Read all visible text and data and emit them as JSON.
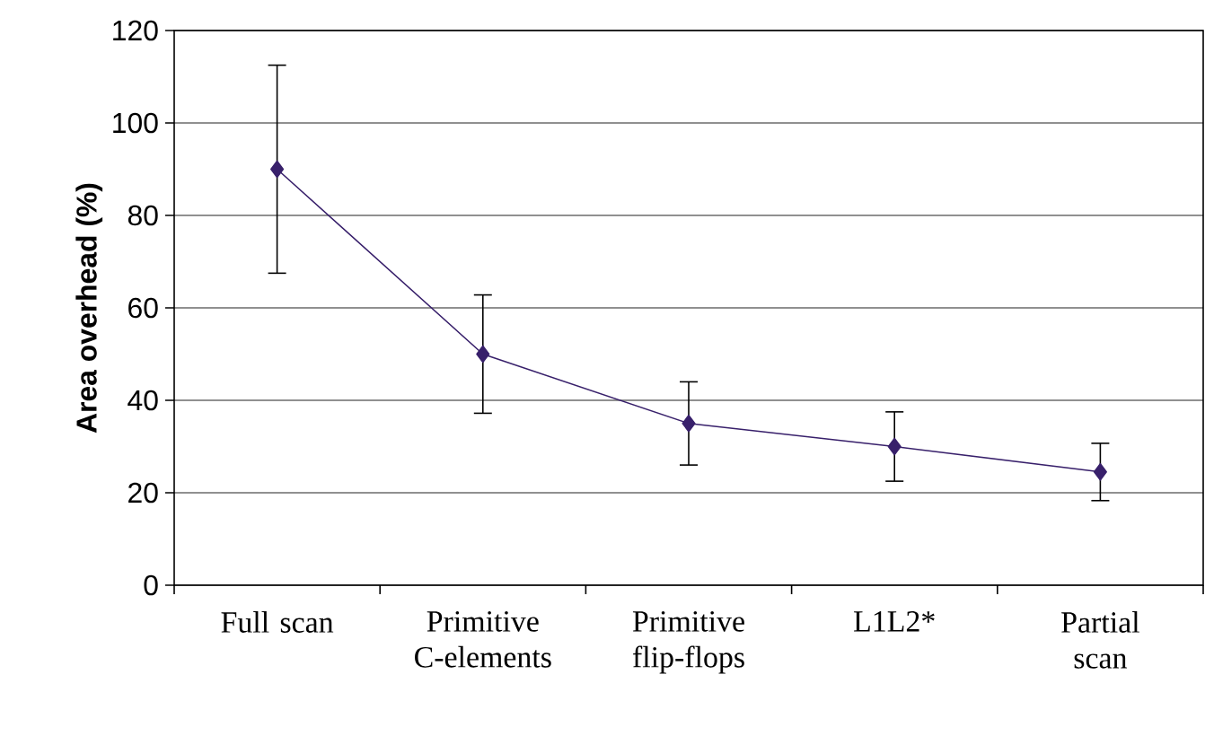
{
  "chart_data": {
    "type": "line",
    "categories": [
      "Full scan",
      "Primitive C-elements",
      "Primitive flip-flops",
      "L1L2*",
      "Partial scan"
    ],
    "ylabel": "Area overhead (%)",
    "series": [
      {
        "color": "#38206b",
        "values": [
          90,
          50,
          35,
          30,
          24.5
        ],
        "errors": [
          22.5,
          12.8,
          9,
          7.5,
          6.2
        ]
      }
    ],
    "ylim": [
      0,
      120
    ],
    "yticks": [
      0,
      20,
      40,
      60,
      80,
      100,
      120
    ],
    "grid": "y",
    "marker": "diamond",
    "line_style": "solid"
  }
}
